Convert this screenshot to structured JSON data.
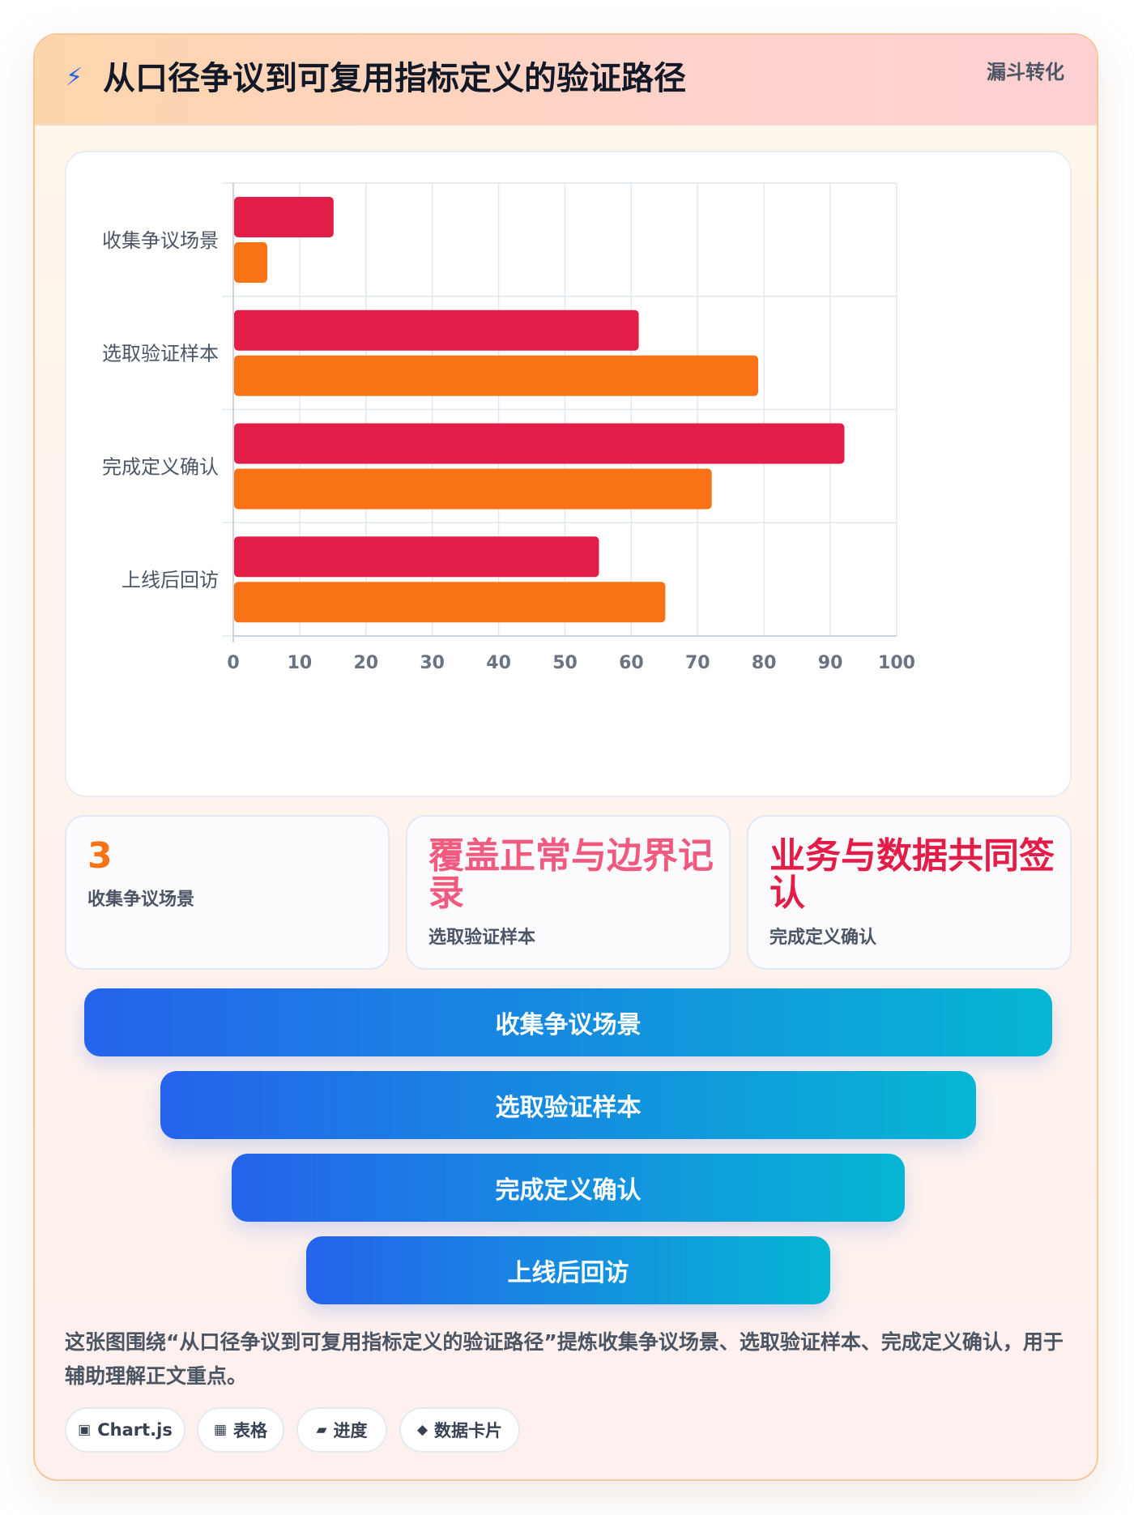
{
  "header": {
    "icon": "lightning-icon",
    "title": "从口径争议到可复用指标定义的验证路径",
    "tag": "漏斗转化"
  },
  "chart_data": {
    "type": "bar",
    "orientation": "horizontal",
    "categories": [
      "收集争议场景",
      "选取验证样本",
      "完成定义确认",
      "上线后回访"
    ],
    "series": [
      {
        "color": "#e11d48",
        "values": [
          15,
          61,
          92,
          55
        ]
      },
      {
        "color": "#f97316",
        "values": [
          5,
          79,
          72,
          65
        ]
      }
    ],
    "xlim": [
      0,
      100
    ],
    "xticks": [
      0,
      10,
      20,
      30,
      40,
      50,
      60,
      70,
      80,
      90,
      100
    ],
    "grid": true
  },
  "stats": [
    {
      "value": "3",
      "label": "收集争议场景",
      "color": "#f97316"
    },
    {
      "value": "覆盖正常与边界记录",
      "label": "选取验证样本",
      "color": "#f05a7e"
    },
    {
      "value": "业务与数据共同签认",
      "label": "完成定义确认",
      "color": "#e11d48"
    }
  ],
  "funnel": [
    "收集争议场景",
    "选取验证样本",
    "完成定义确认",
    "上线后回访"
  ],
  "description": "这张图围绕“从口径争议到可复用指标定义的验证路径”提炼收集争议场景、选取验证样本、完成定义确认，用于辅助理解正文重点。",
  "chips": [
    {
      "icon": "▣",
      "label": "Chart.js"
    },
    {
      "icon": "▦",
      "label": "表格"
    },
    {
      "icon": "▰",
      "label": "进度"
    },
    {
      "icon": "◆",
      "label": "数据卡片"
    }
  ]
}
